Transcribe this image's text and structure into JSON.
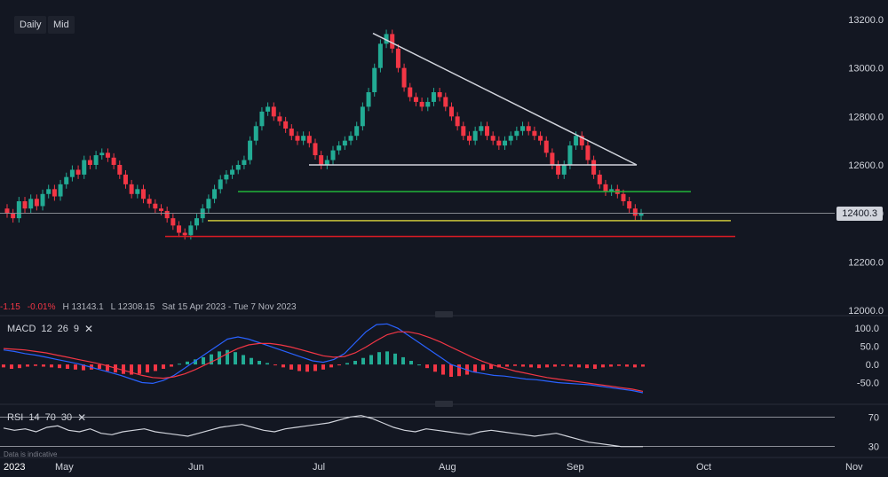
{
  "toolbar": {
    "daily_label": "Daily",
    "mid_label": "Mid"
  },
  "info_bar": {
    "change": "-1.15",
    "change_pct": "-0.01%",
    "high": "H 13143.1",
    "low": "L 12308.15",
    "range": "Sat 15 Apr 2023 - Tue 7 Nov 2023"
  },
  "price_badge": "12400.3",
  "macd_label": {
    "name": "MACD",
    "p1": "12",
    "p2": "26",
    "p3": "9"
  },
  "rsi_label": {
    "name": "RSI",
    "p1": "14",
    "p2": "70",
    "p3": "30"
  },
  "disclaimer": "Data is indicative",
  "colors": {
    "up": "#22ab94",
    "down": "#f23645",
    "trend_white": "#d1d4dc",
    "support_green": "#21b53a",
    "support_yellow": "#c8c33a",
    "support_red": "#e01b24",
    "macd_line": "#2962ff",
    "signal_line": "#f23645"
  },
  "chart_data": [
    {
      "type": "candlestick",
      "title": "",
      "ylim": [
        12000,
        13200
      ],
      "y_ticks": [
        "13200.0",
        "13000.0",
        "12800.0",
        "12600.0",
        "12400.0",
        "12200.0",
        "12000.0"
      ],
      "x_ticks": [
        "2023",
        "May",
        "Jun",
        "Jul",
        "Aug",
        "Sep",
        "Oct",
        "Nov"
      ],
      "last_price": 12400.3,
      "high": 13143.1,
      "low": 12308.15,
      "closes": [
        12400,
        12380,
        12450,
        12420,
        12460,
        12430,
        12480,
        12500,
        12470,
        12520,
        12550,
        12580,
        12560,
        12620,
        12600,
        12640,
        12650,
        12630,
        12600,
        12560,
        12520,
        12480,
        12500,
        12460,
        12440,
        12420,
        12410,
        12380,
        12350,
        12320,
        12310,
        12350,
        12380,
        12420,
        12460,
        12500,
        12540,
        12560,
        12580,
        12600,
        12620,
        12700,
        12760,
        12820,
        12840,
        12800,
        12780,
        12750,
        12720,
        12700,
        12720,
        12690,
        12640,
        12600,
        12620,
        12660,
        12680,
        12700,
        12720,
        12760,
        12840,
        12900,
        13000,
        13100,
        13140,
        13080,
        13000,
        12920,
        12880,
        12860,
        12840,
        12860,
        12900,
        12880,
        12840,
        12800,
        12760,
        12720,
        12700,
        12740,
        12760,
        12720,
        12700,
        12680,
        12700,
        12720,
        12740,
        12760,
        12740,
        12720,
        12700,
        12650,
        12600,
        12560,
        12600,
        12680,
        12720,
        12680,
        12620,
        12560,
        12520,
        12490,
        12500,
        12480,
        12450,
        12420,
        12390,
        12400
      ],
      "trendlines": [
        {
          "label": "descending resistance",
          "from": [
            13143,
            "Jul"
          ],
          "to": [
            12600,
            "Sep"
          ]
        },
        {
          "label": "horizontal",
          "value": 12600
        },
        {
          "label": "support green",
          "value": 12490
        },
        {
          "label": "support yellow",
          "value": 12370
        },
        {
          "label": "support red",
          "value": 12305
        }
      ]
    },
    {
      "type": "histogram",
      "name": "MACD",
      "ylim": [
        -100,
        120
      ],
      "y_ticks": [
        "100.0",
        "50.0",
        "0.0",
        "-50.0"
      ],
      "hist": [
        -8,
        -12,
        -10,
        -6,
        -4,
        -6,
        -8,
        -10,
        -12,
        -14,
        -16,
        -14,
        -12,
        -18,
        -22,
        -26,
        -28,
        -26,
        -22,
        -18,
        -12,
        -6,
        2,
        8,
        14,
        20,
        28,
        36,
        40,
        34,
        26,
        18,
        10,
        4,
        -2,
        -8,
        -14,
        -18,
        -20,
        -18,
        -14,
        -8,
        -2,
        4,
        10,
        18,
        26,
        34,
        36,
        30,
        20,
        10,
        0,
        -10,
        -20,
        -28,
        -34,
        -32,
        -28,
        -22,
        -16,
        -12,
        -8,
        -6,
        -4,
        -6,
        -8,
        -10,
        -8,
        -6,
        -4,
        -6,
        -8,
        -10,
        -12,
        -8,
        -6,
        -4,
        -6,
        -8,
        -6
      ],
      "macd": [
        40,
        36,
        30,
        26,
        20,
        14,
        8,
        2,
        -6,
        -14,
        -22,
        -30,
        -40,
        -50,
        -52,
        -44,
        -30,
        -10,
        10,
        30,
        50,
        70,
        76,
        70,
        60,
        50,
        40,
        30,
        20,
        10,
        6,
        14,
        30,
        60,
        90,
        110,
        112,
        100,
        80,
        60,
        40,
        20,
        0,
        -10,
        -20,
        -25,
        -30,
        -32,
        -36,
        -40,
        -42,
        -46,
        -50,
        -52,
        -54,
        -56,
        -60,
        -64,
        -68,
        -72,
        -78
      ],
      "signal": [
        44,
        42,
        40,
        36,
        32,
        26,
        20,
        14,
        8,
        2,
        -6,
        -14,
        -22,
        -30,
        -36,
        -38,
        -34,
        -26,
        -14,
        0,
        14,
        30,
        44,
        54,
        58,
        58,
        54,
        48,
        40,
        32,
        24,
        20,
        22,
        32,
        48,
        66,
        82,
        90,
        90,
        84,
        74,
        62,
        48,
        34,
        20,
        8,
        -2,
        -10,
        -18,
        -24,
        -30,
        -36,
        -40,
        -44,
        -48,
        -52,
        -56,
        -60,
        -64,
        -68,
        -74
      ]
    },
    {
      "type": "line",
      "name": "RSI",
      "ylim": [
        0,
        100
      ],
      "y_ticks": [
        "70",
        "30"
      ],
      "values": [
        55,
        52,
        54,
        50,
        56,
        58,
        52,
        50,
        54,
        48,
        46,
        50,
        52,
        54,
        50,
        48,
        46,
        44,
        48,
        52,
        56,
        58,
        60,
        56,
        52,
        50,
        54,
        56,
        58,
        60,
        62,
        66,
        70,
        72,
        68,
        62,
        56,
        52,
        50,
        54,
        52,
        50,
        48,
        46,
        50,
        52,
        50,
        48,
        46,
        44,
        46,
        48,
        44,
        40,
        36,
        34,
        32,
        30,
        30,
        30
      ]
    }
  ]
}
